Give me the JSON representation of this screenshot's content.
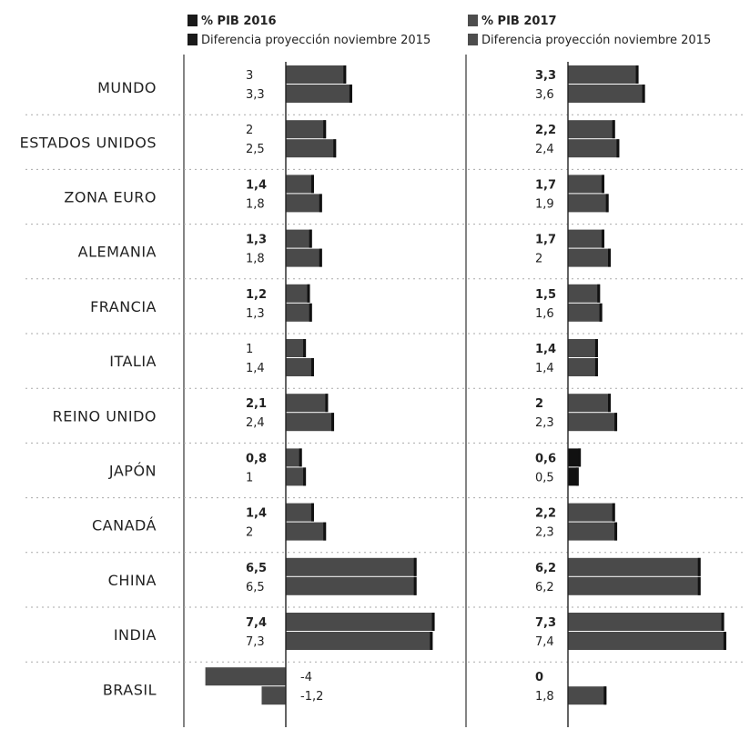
{
  "chart_data": {
    "type": "bar",
    "orientation": "horizontal",
    "categories": [
      "MUNDO",
      "ESTADOS UNIDOS",
      "ZONA EURO",
      "ALEMANIA",
      "FRANCIA",
      "ITALIA",
      "REINO UNIDO",
      "JAPÓN",
      "CANADÁ",
      "CHINA",
      "INDIA",
      "BRASIL"
    ],
    "panels": [
      {
        "legend": [
          {
            "label": "% PIB 2016",
            "color": "#1a1a1a"
          },
          {
            "label": "Diferencia proyección noviembre 2015",
            "color": "#1a1a1a"
          }
        ],
        "series": [
          {
            "name": "% PIB 2016",
            "values": [
              3,
              2,
              1.4,
              1.3,
              1.2,
              1,
              2.1,
              0.8,
              1.4,
              6.5,
              7.4,
              -4
            ],
            "labels": [
              "3",
              "2",
              "1,4",
              "1,3",
              "1,2",
              "1",
              "2,1",
              "0,8",
              "1,4",
              "6,5",
              "7,4",
              "-4"
            ]
          },
          {
            "name": "Diferencia proyección noviembre 2015",
            "values": [
              3.3,
              2.5,
              1.8,
              1.8,
              1.3,
              1.4,
              2.4,
              1,
              2,
              6.5,
              7.3,
              -1.2
            ],
            "labels": [
              "3,3",
              "2,5",
              "1,8",
              "1,8",
              "1,3",
              "1,4",
              "2,4",
              "1",
              "2",
              "6,5",
              "7,3",
              "-1,2"
            ]
          }
        ]
      },
      {
        "legend": [
          {
            "label": "% PIB 2017",
            "color": "#4d4d4d"
          },
          {
            "label": "Diferencia proyección noviembre 2015",
            "color": "#4d4d4d"
          }
        ],
        "series": [
          {
            "name": "% PIB 2017",
            "values": [
              3.3,
              2.2,
              1.7,
              1.7,
              1.5,
              1.4,
              2,
              0.6,
              2.2,
              6.2,
              7.3,
              0
            ],
            "labels": [
              "3,3",
              "2,2",
              "1,7",
              "1,7",
              "1,5",
              "1,4",
              "2",
              "0,6",
              "2,2",
              "6,2",
              "7,3",
              "0"
            ]
          },
          {
            "name": "Diferencia proyección noviembre 2015",
            "values": [
              3.6,
              2.4,
              1.9,
              2,
              1.6,
              1.4,
              2.3,
              0.5,
              2.3,
              6.2,
              7.4,
              1.8
            ],
            "labels": [
              "3,6",
              "2,4",
              "1,9",
              "2",
              "1,6",
              "1,4",
              "2,3",
              "0,5",
              "2,3",
              "6,2",
              "7,4",
              "1,8"
            ]
          }
        ]
      }
    ],
    "bar_color": "#4a4a4a",
    "bar_color_dark": "#111111",
    "grid": false
  }
}
